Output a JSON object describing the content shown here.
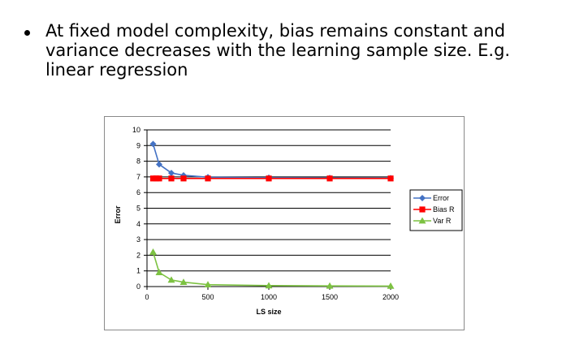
{
  "slide": {
    "bullet_lines": [
      "At fixed model complexity, bias remains constant and",
      "variance decreases with the learning sample size. E.g.",
      "linear regression"
    ]
  },
  "chart_data": {
    "type": "line",
    "title": "",
    "xlabel": "LS size",
    "ylabel": "Error",
    "xlim": [
      0,
      2000
    ],
    "ylim": [
      0,
      10
    ],
    "x_ticks": [
      0,
      500,
      1000,
      1500,
      2000
    ],
    "y_ticks": [
      0,
      1,
      2,
      3,
      4,
      5,
      6,
      7,
      8,
      9,
      10
    ],
    "grid": "horizontal",
    "legend_position": "right",
    "series": [
      {
        "name": "Error",
        "color": "#4472C4",
        "marker": "diamond",
        "points": [
          [
            50,
            9.1
          ],
          [
            100,
            7.8
          ],
          [
            200,
            7.25
          ],
          [
            300,
            7.1
          ],
          [
            500,
            6.98
          ],
          [
            1000,
            6.95
          ],
          [
            1500,
            6.93
          ],
          [
            2000,
            6.92
          ]
        ]
      },
      {
        "name": "Bias R",
        "color": "#FF0000",
        "marker": "square",
        "points": [
          [
            50,
            6.9
          ],
          [
            75,
            6.9
          ],
          [
            100,
            6.9
          ],
          [
            200,
            6.9
          ],
          [
            300,
            6.9
          ],
          [
            500,
            6.9
          ],
          [
            1000,
            6.9
          ],
          [
            1500,
            6.9
          ],
          [
            2000,
            6.9
          ]
        ]
      },
      {
        "name": "Var R",
        "color": "#7DC242",
        "marker": "triangle",
        "points": [
          [
            50,
            2.2
          ],
          [
            100,
            0.9
          ],
          [
            200,
            0.42
          ],
          [
            300,
            0.28
          ],
          [
            500,
            0.12
          ],
          [
            1000,
            0.06
          ],
          [
            1500,
            0.04
          ],
          [
            2000,
            0.03
          ]
        ]
      }
    ]
  }
}
